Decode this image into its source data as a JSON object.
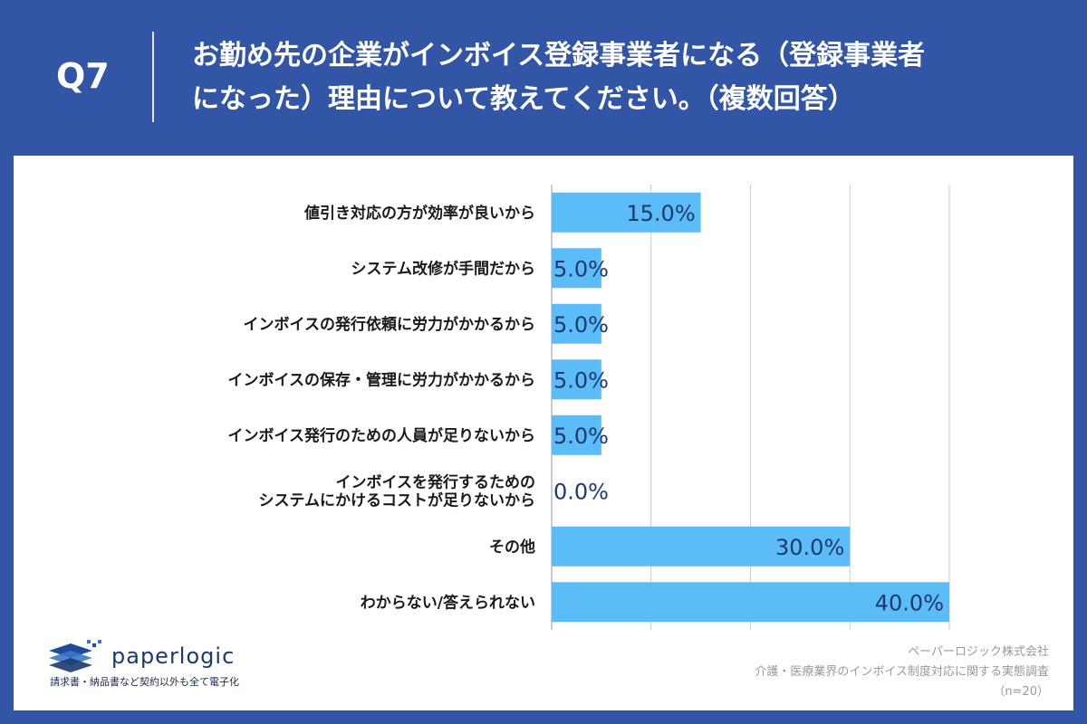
{
  "header": {
    "question_number": "Q7",
    "question_title": "お勤め先の企業がインボイス登録事業者になる（登録事業者\nになった）理由について教えてください。（複数回答）"
  },
  "colors": {
    "background": "#3355a5",
    "bar": "#5bbcf7",
    "value_label": "#1b3a6e",
    "category_label": "#1a1a1a",
    "gridline": "#cccccc"
  },
  "chart_data": {
    "type": "bar",
    "orientation": "horizontal",
    "categories": [
      "値引き対応の方が効率が良いから",
      "システム改修が手間だから",
      "インボイスの発行依頼に労力がかかるから",
      "インボイスの保存・管理に労力がかかるから",
      "インボイス発行のための人員が足りないから",
      "インボイスを発行するための\nシステムにかけるコストが足りないから",
      "その他",
      "わからない/答えられない"
    ],
    "values": [
      15.0,
      5.0,
      5.0,
      5.0,
      5.0,
      0.0,
      30.0,
      40.0
    ],
    "value_labels": [
      "15.0%",
      "5.0%",
      "5.0%",
      "5.0%",
      "5.0%",
      "0.0%",
      "30.0%",
      "40.0%"
    ],
    "xlim": [
      0,
      40
    ],
    "gridlines_at": [
      0,
      10,
      20,
      30,
      40
    ],
    "grid": true,
    "legend": "none"
  },
  "logo": {
    "name": "paperlogic",
    "tagline": "請求書・納品書など契約以外も全て電子化"
  },
  "source": {
    "company": "ペーパーロジック株式会社",
    "survey": "介護・医療業界のインボイス制度対応に関する実態調査",
    "sample": "（n=20）"
  }
}
